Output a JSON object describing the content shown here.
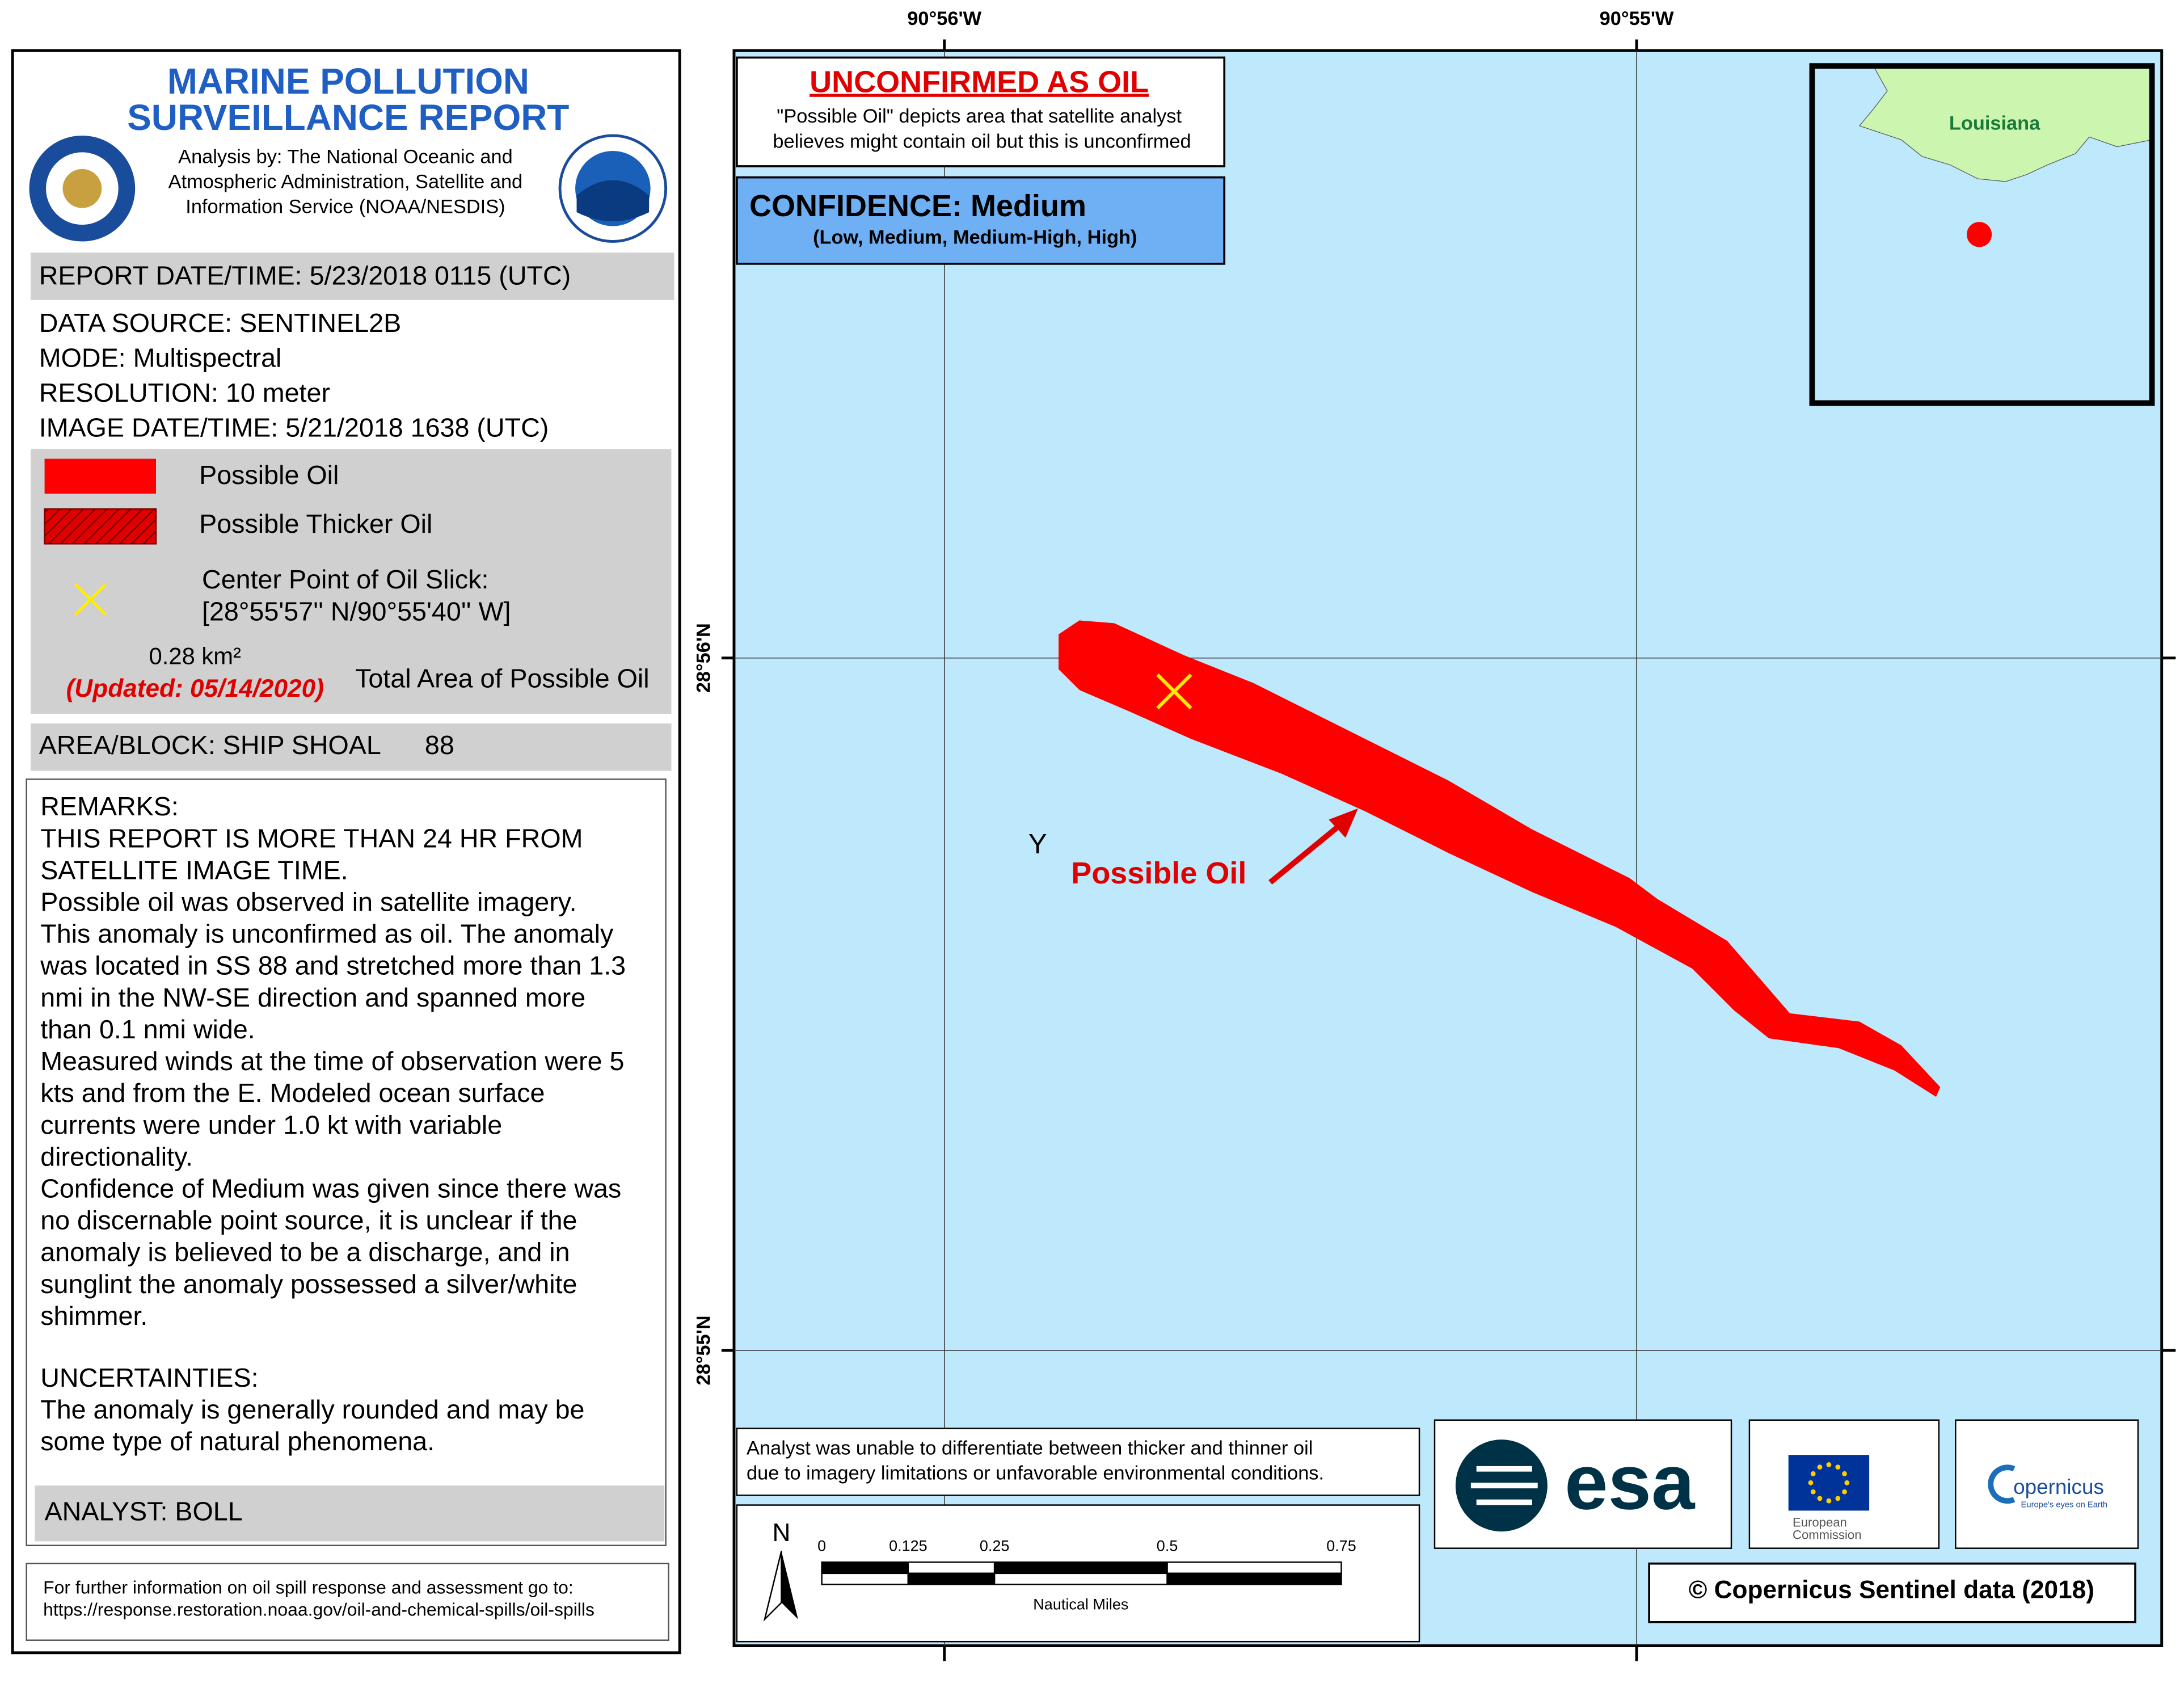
{
  "header": {
    "title": [
      "MARINE POLLUTION",
      "SURVEILLANCE REPORT"
    ],
    "analysis": [
      "Analysis by: The National Oceanic and",
      "Atmospheric Administration, Satellite and",
      "Information Service (NOAA/NESDIS)"
    ]
  },
  "report_datetime": "REPORT DATE/TIME: 5/23/2018 0115 (UTC)",
  "details": [
    "DATA SOURCE: SENTINEL2B",
    "MODE: Multispectral",
    "RESOLUTION: 10 meter",
    "IMAGE DATE/TIME: 5/21/2018 1638 (UTC)"
  ],
  "legend": {
    "possible_oil": "Possible Oil",
    "thicker_oil": "Possible Thicker Oil",
    "center_point": "Center Point of Oil Slick:",
    "coordinates": "[28°55'57'' N/90°55'40'' W]",
    "area": "0.28 km²",
    "updated": "(Updated: 05/14/2020)",
    "area_label": "Total Area of Possible Oil"
  },
  "area_block": {
    "label": "AREA/BLOCK: SHIP SHOAL",
    "number": "88"
  },
  "remarks": [
    "REMARKS:",
    "THIS REPORT IS MORE THAN 24 HR FROM",
    "SATELLITE IMAGE TIME.",
    "Possible oil was observed in satellite imagery.",
    "This anomaly is unconfirmed as oil. The anomaly",
    "was located in SS 88 and stretched more than 1.3",
    "nmi in the NW-SE direction and spanned more",
    "than 0.1 nmi wide.",
    "Measured winds at the time of observation were 5",
    "kts and from the E. Modeled ocean surface",
    "currents were under 1.0 kt with variable",
    "directionality.",
    "Confidence of Medium was given since there was",
    "no discernable point source, it is unclear if the",
    "anomaly is believed to be a discharge, and in",
    "sunglint the anomaly possessed a silver/white",
    "shimmer."
  ],
  "uncertainties": [
    "UNCERTAINTIES:",
    "The anomaly is generally rounded and may be",
    "some type of natural phenomena."
  ],
  "analyst": "ANALYST: BOLL",
  "footer": [
    "For further information on oil spill response and assessment go to:",
    "https://response.restoration.noaa.gov/oil-and-chemical-spills/oil-spills"
  ],
  "map": {
    "lon_labels": [
      "90°56'W",
      "90°55'W"
    ],
    "lat_labels": [
      "28°56'N",
      "28°55'N"
    ],
    "status": "UNCONFIRMED AS OIL",
    "status_note": [
      "\"Possible Oil\" depicts area that satellite analyst",
      "believes might contain oil but this is unconfirmed"
    ],
    "confidence": "CONFIDENCE: Medium",
    "confidence_scale": "(Low, Medium, Medium-High, High)",
    "inset_label": "Louisiana",
    "marker": "Y",
    "annotation": "Possible Oil",
    "note": [
      "Analyst was unable to differentiate between thicker and thinner oil",
      "due to imagery limitations or unfavorable environmental conditions."
    ],
    "north": "N",
    "scale_labels": [
      "0",
      "0.125",
      "0.25",
      "0.5",
      "0.75"
    ],
    "scale_unit": "Nautical Miles",
    "esa": "esa",
    "ec": [
      "European",
      "Commission"
    ],
    "copernicus": [
      "opernicus",
      "Europe's eyes on Earth"
    ],
    "copyright": "© Copernicus Sentinel data (2018)"
  }
}
